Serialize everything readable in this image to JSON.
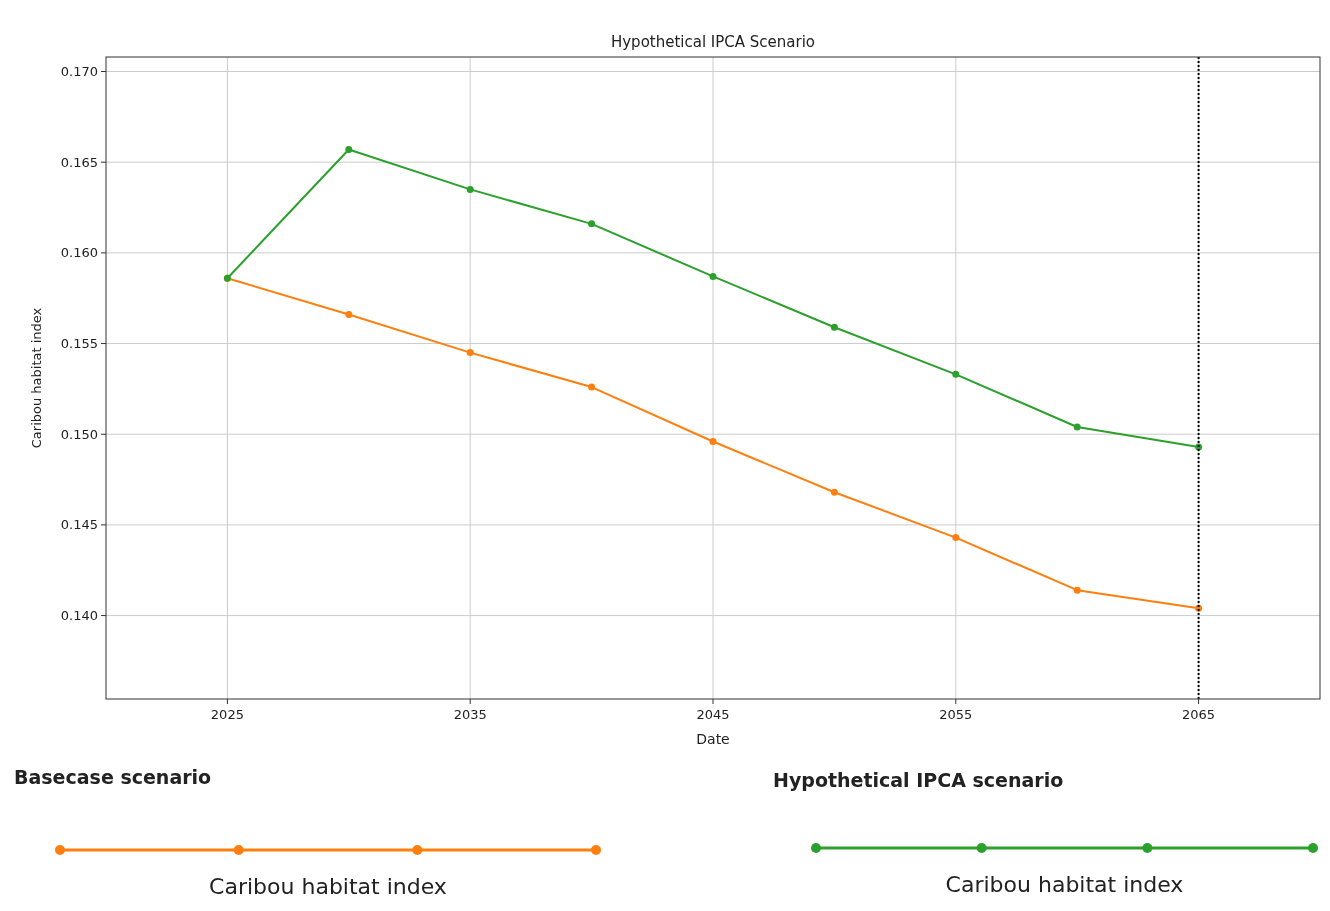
{
  "chart_data": {
    "type": "line",
    "title": "Hypothetical IPCA Scenario",
    "xlabel": "Date",
    "ylabel": "Caribou habitat index",
    "x": [
      2025,
      2030,
      2035,
      2040,
      2045,
      2050,
      2055,
      2060,
      2065
    ],
    "series": [
      {
        "name": "Caribou habitat index",
        "color": "#ff7f0e",
        "values": [
          0.1586,
          0.1566,
          0.1545,
          0.1526,
          0.1496,
          0.1468,
          0.1443,
          0.1414,
          0.1404
        ]
      },
      {
        "name": "Caribou habitat index",
        "color": "#2ca02c",
        "values": [
          0.1586,
          0.1657,
          0.1635,
          0.1616,
          0.1587,
          0.1559,
          0.1533,
          0.1504,
          0.1493
        ]
      }
    ],
    "annotations": [
      "Basecase scenario",
      "Hypothetical IPCA scenario"
    ],
    "xlim": [
      2020,
      2070
    ],
    "xticks": [
      2025,
      2035,
      2045,
      2055,
      2065
    ],
    "ylim": [
      0.1354,
      0.1708
    ],
    "yticks": [
      {
        "value": 0.14,
        "label": "0.140"
      },
      0.145,
      {
        "value": 0.15,
        "label": "0.150"
      },
      0.155,
      {
        "value": 0.16,
        "label": "0.160"
      },
      0.165,
      {
        "value": 0.17,
        "label": "0.170"
      }
    ],
    "ref_lines": [
      {
        "axis": "x",
        "value": 2065,
        "color": "#000000",
        "line_style": "dotted"
      }
    ],
    "grid": true,
    "legend": "bottom",
    "marker": "circle",
    "line_style": "solid"
  }
}
